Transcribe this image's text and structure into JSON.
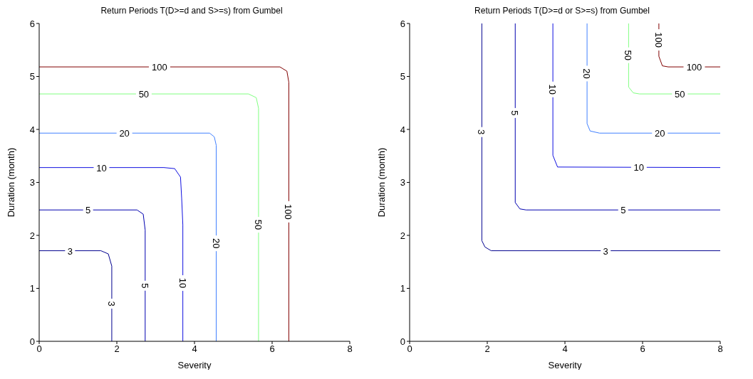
{
  "chart_data": [
    {
      "type": "line",
      "title": "Return Periods T(D>=d and S>=s) from Gumbel",
      "xlabel": "Severity",
      "ylabel": "Duration (month)",
      "xlim": [
        0,
        8
      ],
      "ylim": [
        0,
        6
      ],
      "xticks": [
        0,
        2,
        4,
        6,
        8
      ],
      "yticks": [
        0,
        1,
        2,
        3,
        4,
        5,
        6
      ],
      "marker": "none",
      "series": [
        {
          "name": "3",
          "color": "#00008f",
          "x": [
            0,
            1.59,
            1.78,
            1.87,
            1.87
          ],
          "values": [
            1.71,
            1.71,
            1.65,
            1.42,
            0
          ]
        },
        {
          "name": "5",
          "color": "#0000b0",
          "x": [
            0,
            2.52,
            2.68,
            2.73,
            2.73
          ],
          "values": [
            2.48,
            2.48,
            2.4,
            2.1,
            0
          ]
        },
        {
          "name": "10",
          "color": "#1010e0",
          "x": [
            0,
            3.21,
            3.49,
            3.64,
            3.67,
            3.7,
            3.7
          ],
          "values": [
            3.28,
            3.28,
            3.26,
            3.1,
            2.7,
            2.2,
            0
          ]
        },
        {
          "name": "20",
          "color": "#4080ff",
          "x": [
            0,
            4.39,
            4.51,
            4.56,
            4.56
          ],
          "values": [
            3.93,
            3.93,
            3.86,
            3.7,
            0
          ]
        },
        {
          "name": "50",
          "color": "#80ff80",
          "x": [
            0,
            5.39,
            5.59,
            5.65,
            5.65
          ],
          "values": [
            4.67,
            4.67,
            4.6,
            4.4,
            0
          ]
        },
        {
          "name": "100",
          "color": "#800000",
          "x": [
            0,
            6.2,
            6.38,
            6.43,
            6.43
          ],
          "values": [
            5.18,
            5.18,
            5.1,
            4.89,
            0
          ]
        }
      ]
    },
    {
      "type": "line",
      "title": "Return Periods T(D>=d or S>=s) from Gumbel",
      "xlabel": "Severity",
      "ylabel": "Duration (month)",
      "xlim": [
        0,
        8
      ],
      "ylim": [
        0,
        6
      ],
      "xticks": [
        0,
        2,
        4,
        6,
        8
      ],
      "yticks": [
        0,
        1,
        2,
        3,
        4,
        5,
        6
      ],
      "marker": "none",
      "series": [
        {
          "name": "3",
          "color": "#00008f",
          "x": [
            1.86,
            1.86,
            1.94,
            2.1,
            8
          ],
          "values": [
            6,
            1.9,
            1.78,
            1.71,
            1.71
          ]
        },
        {
          "name": "5",
          "color": "#0000b0",
          "x": [
            2.72,
            2.72,
            2.84,
            3.0,
            8
          ],
          "values": [
            6,
            2.62,
            2.5,
            2.48,
            2.48
          ]
        },
        {
          "name": "10",
          "color": "#1010e0",
          "x": [
            3.69,
            3.69,
            3.81,
            8
          ],
          "values": [
            6,
            3.51,
            3.29,
            3.28
          ]
        },
        {
          "name": "20",
          "color": "#4080ff",
          "x": [
            4.57,
            4.57,
            4.65,
            4.89,
            8
          ],
          "values": [
            6,
            4.11,
            3.97,
            3.93,
            3.93
          ]
        },
        {
          "name": "50",
          "color": "#80ff80",
          "x": [
            5.64,
            5.64,
            5.76,
            5.92,
            8
          ],
          "values": [
            6,
            4.8,
            4.69,
            4.67,
            4.67
          ]
        },
        {
          "name": "100",
          "color": "#800000",
          "x": [
            6.42,
            6.42,
            6.51,
            6.66,
            8
          ],
          "values": [
            6,
            5.38,
            5.2,
            5.18,
            5.18
          ]
        }
      ]
    }
  ]
}
